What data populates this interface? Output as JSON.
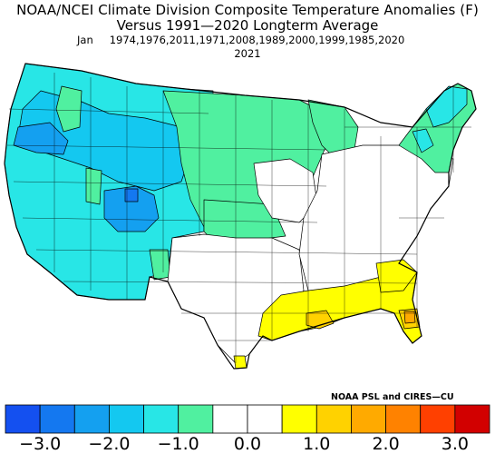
{
  "header": {
    "title_line1": "NOAA/NCEI Climate Division Composite Temperature Anomalies (F)",
    "title_line2": "Versus 1991—2020 Longterm Average",
    "month": "Jan",
    "years_line1": "1974,1976,2011,1971,2008,1989,2000,1999,1985,2020",
    "years_line2": "2021"
  },
  "credit": "NOAA PSL and CIRES—CU",
  "colorbar": {
    "colors": [
      "#1450f0",
      "#1478f0",
      "#14a0f0",
      "#14c8f0",
      "#28e6e6",
      "#50f0a0",
      "#ffffff",
      "#ffffff",
      "#ffff00",
      "#ffd200",
      "#ffaa00",
      "#ff8200",
      "#ff4000",
      "#d20000"
    ],
    "tick_labels": [
      "−3.0",
      "−2.0",
      "−1.0",
      "0.0",
      "1.0",
      "2.0",
      "3.0"
    ],
    "tick_values": [
      -3.0,
      -2.0,
      -1.0,
      0.0,
      1.0,
      2.0,
      3.0
    ],
    "range": [
      -3.5,
      3.5
    ]
  },
  "map_legend_colors": {
    "cyan_anomaly": "#28e6e6",
    "mid_blue_anomaly": "#14c8f0",
    "blue_anomaly": "#14a0f0",
    "dark_blue_anomaly": "#1478f0",
    "green_anomaly": "#50f0a0",
    "neutral": "#ffffff",
    "yellow_anomaly": "#ffff00",
    "gold_anomaly": "#ffd200",
    "orange_anomaly": "#ffaa00"
  }
}
